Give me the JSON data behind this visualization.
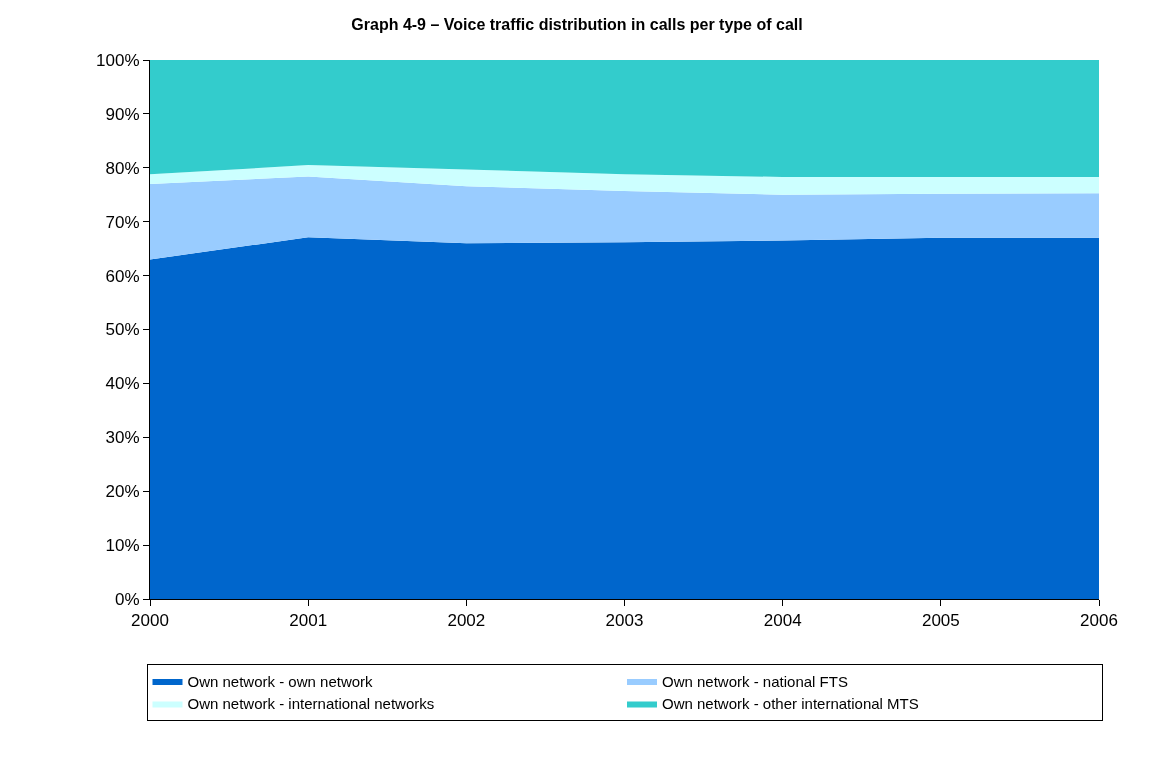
{
  "chart_data": {
    "type": "area",
    "stacked": true,
    "title": "Graph 4-9 – Voice traffic distribution in calls per type of call",
    "x": [
      2000,
      2001,
      2002,
      2003,
      2004,
      2005,
      2006
    ],
    "series": [
      {
        "name": "Own network - own network",
        "color": "#0066cc",
        "values": [
          63,
          67.1,
          66,
          66.2,
          66.5,
          67,
          67
        ]
      },
      {
        "name": "Own network - national FTS",
        "color": "#99ccff",
        "values": [
          14,
          11.3,
          10.6,
          9.5,
          8.5,
          8.2,
          8.3
        ]
      },
      {
        "name": "Own network - international networks",
        "color": "#ccffff",
        "values": [
          1.8,
          2.1,
          3.1,
          3.1,
          3.3,
          3.1,
          3.0
        ]
      },
      {
        "name": "Own network - other international MTS",
        "color": "#33cccc",
        "values": [
          21.2,
          19.5,
          20.3,
          21.2,
          21.7,
          21.7,
          21.7
        ]
      }
    ],
    "xlim": [
      2000,
      2006
    ],
    "xticks": [
      2000,
      2001,
      2002,
      2003,
      2004,
      2005,
      2006
    ],
    "ylim": [
      0,
      100
    ],
    "yticks": [
      {
        "value": 0,
        "label": "0%"
      },
      {
        "value": 10,
        "label": "10%"
      },
      {
        "value": 20,
        "label": "20%"
      },
      {
        "value": 30,
        "label": "30%"
      },
      {
        "value": 40,
        "label": "40%"
      },
      {
        "value": 50,
        "label": "50%"
      },
      {
        "value": 60,
        "label": "60%"
      },
      {
        "value": 70,
        "label": "70%"
      },
      {
        "value": 80,
        "label": "80%"
      },
      {
        "value": 90,
        "label": "90%"
      },
      {
        "value": 100,
        "label": "100%"
      }
    ],
    "legend": "bottom"
  }
}
